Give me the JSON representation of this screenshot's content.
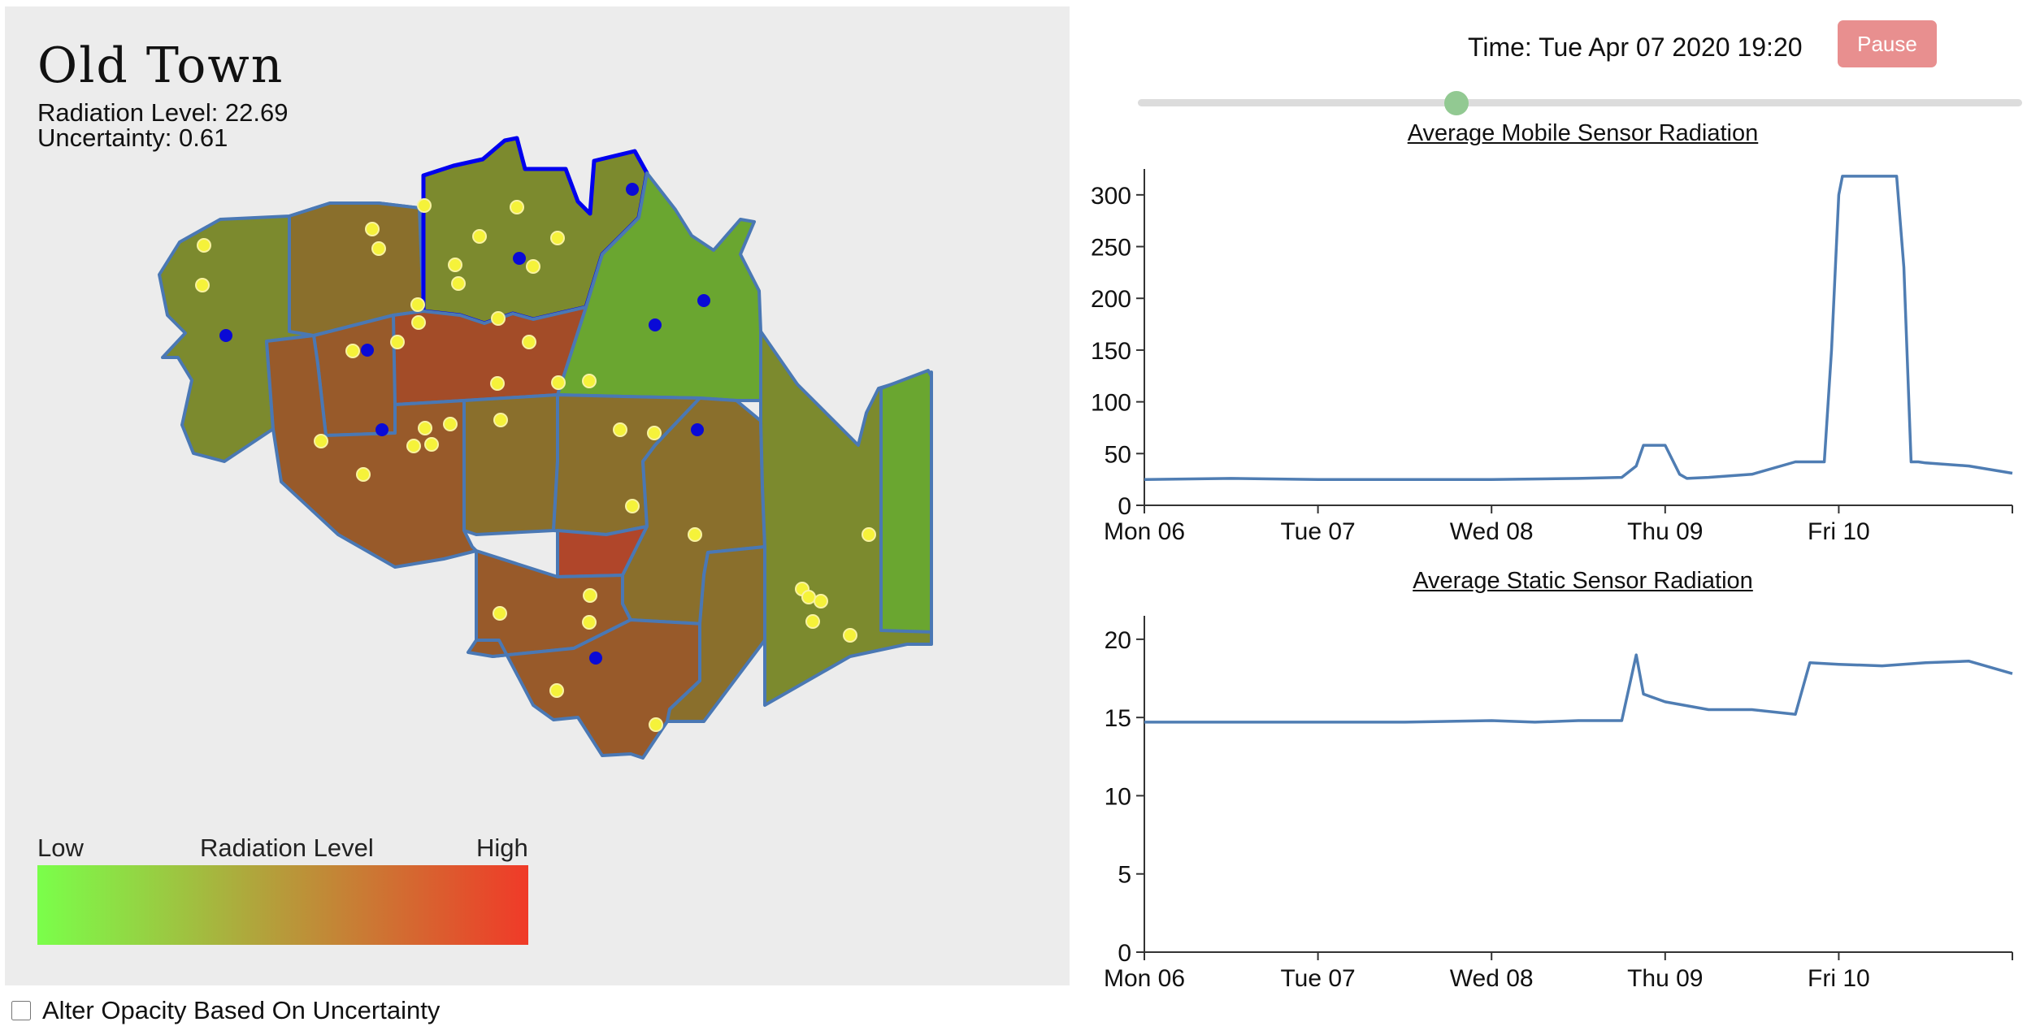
{
  "map": {
    "district_name": "Old Town",
    "radiation_label": "Radiation Level: 22.69",
    "uncertainty_label": "Uncertainty: 0.61",
    "legend": {
      "low": "Low",
      "title": "Radiation Level",
      "high": "High",
      "gradient": [
        "#7aff4a",
        "#b79a3a",
        "#f03a28"
      ]
    },
    "colors": {
      "background": "#ececec",
      "border": "#4a78b4",
      "selected_border": "#0000ee",
      "mobile_sensor": "#f5f23a",
      "static_sensor": "#0a0ad6",
      "low_fill": "#6aa630",
      "midlow_fill": "#7c8a2e",
      "mid_fill": "#8a6f2c",
      "midhigh_fill": "#985a2a",
      "high_fill": "#a34c28",
      "highest_fill": "#b0462a"
    }
  },
  "controls": {
    "time_label": "Time: Tue Apr 07 2020 19:20",
    "pause_label": "Pause",
    "slider_position": 0.36,
    "checkbox_label": "Alter Opacity Based On Uncertainty"
  },
  "chart_data": [
    {
      "type": "line",
      "title": "Average Mobile Sensor Radiation",
      "x_ticks": [
        "Mon 06",
        "Tue 07",
        "Wed 08",
        "Thu 09",
        "Fri 10"
      ],
      "x_range": [
        "2020-04-06 00:00",
        "2020-04-11 00:00"
      ],
      "ylim": [
        0,
        325
      ],
      "y_ticks": [
        0,
        50,
        100,
        150,
        200,
        250,
        300
      ],
      "series": [
        {
          "color": "#4f7db3",
          "x": [
            "2020-04-06 00:00",
            "2020-04-06 12:00",
            "2020-04-07 00:00",
            "2020-04-07 12:00",
            "2020-04-08 00:00",
            "2020-04-08 12:00",
            "2020-04-08 18:00",
            "2020-04-08 20:00",
            "2020-04-08 21:00",
            "2020-04-09 00:00",
            "2020-04-09 02:00",
            "2020-04-09 03:00",
            "2020-04-09 06:00",
            "2020-04-09 12:00",
            "2020-04-09 18:00",
            "2020-04-09 22:00",
            "2020-04-09 23:00",
            "2020-04-10 00:00",
            "2020-04-10 00:30",
            "2020-04-10 01:30",
            "2020-04-10 04:00",
            "2020-04-10 06:00",
            "2020-04-10 08:00",
            "2020-04-10 09:00",
            "2020-04-10 10:00",
            "2020-04-10 11:00",
            "2020-04-10 12:00",
            "2020-04-10 18:00",
            "2020-04-11 00:00"
          ],
          "y": [
            25,
            26,
            25,
            25,
            25,
            26,
            27,
            38,
            58,
            58,
            30,
            26,
            27,
            30,
            42,
            42,
            150,
            300,
            318,
            318,
            318,
            318,
            318,
            230,
            42,
            42,
            41,
            38,
            31
          ]
        }
      ]
    },
    {
      "type": "line",
      "title": "Average Static Sensor Radiation",
      "x_ticks": [
        "Mon 06",
        "Tue 07",
        "Wed 08",
        "Thu 09",
        "Fri 10"
      ],
      "x_range": [
        "2020-04-06 00:00",
        "2020-04-11 00:00"
      ],
      "ylim": [
        0,
        21.5
      ],
      "y_ticks": [
        0,
        5,
        10,
        15,
        20
      ],
      "series": [
        {
          "color": "#4f7db3",
          "x": [
            "2020-04-06 00:00",
            "2020-04-06 12:00",
            "2020-04-07 00:00",
            "2020-04-07 12:00",
            "2020-04-08 00:00",
            "2020-04-08 06:00",
            "2020-04-08 12:00",
            "2020-04-08 18:00",
            "2020-04-08 20:00",
            "2020-04-08 21:00",
            "2020-04-09 00:00",
            "2020-04-09 06:00",
            "2020-04-09 12:00",
            "2020-04-09 18:00",
            "2020-04-09 20:00",
            "2020-04-10 00:00",
            "2020-04-10 06:00",
            "2020-04-10 12:00",
            "2020-04-10 18:00",
            "2020-04-11 00:00"
          ],
          "y": [
            14.7,
            14.7,
            14.7,
            14.7,
            14.8,
            14.7,
            14.8,
            14.8,
            19,
            16.5,
            16,
            15.5,
            15.5,
            15.2,
            18.5,
            18.4,
            18.3,
            18.5,
            18.6,
            17.8
          ]
        }
      ]
    }
  ]
}
